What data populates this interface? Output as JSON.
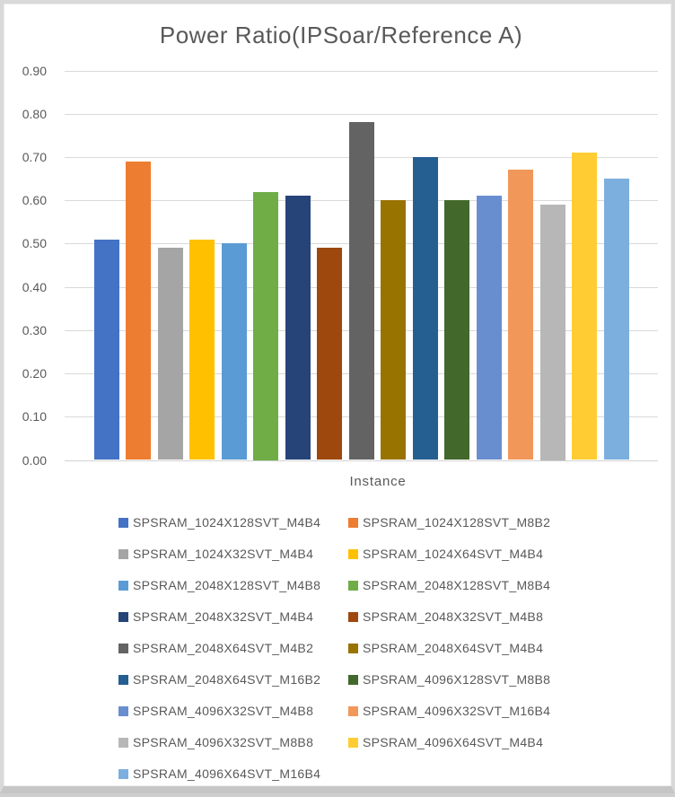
{
  "chart_data": {
    "type": "bar",
    "title": "Power Ratio(IPSoar/Reference A)",
    "xlabel": "Instance",
    "ylabel": "",
    "ylim": [
      0,
      0.9
    ],
    "ytick_step": 0.1,
    "ytick_labels": [
      "0.00",
      "0.10",
      "0.20",
      "0.30",
      "0.40",
      "0.50",
      "0.60",
      "0.70",
      "0.80",
      "0.90"
    ],
    "grid": true,
    "legend_position": "bottom",
    "axis_text_color": "#595959",
    "gridline_color": "#d9d9d9",
    "series": [
      {
        "name": "SPSRAM_1024X128SVT_M4B4",
        "value": 0.51,
        "color": "#4472C4"
      },
      {
        "name": "SPSRAM_1024X128SVT_M8B2",
        "value": 0.69,
        "color": "#ED7D31"
      },
      {
        "name": "SPSRAM_1024X32SVT_M4B4",
        "value": 0.49,
        "color": "#A5A5A5"
      },
      {
        "name": "SPSRAM_1024X64SVT_M4B4",
        "value": 0.51,
        "color": "#FFC000"
      },
      {
        "name": "SPSRAM_2048X128SVT_M4B8",
        "value": 0.5,
        "color": "#5B9BD5"
      },
      {
        "name": "SPSRAM_2048X128SVT_M8B4",
        "value": 0.62,
        "color": "#70AD47"
      },
      {
        "name": "SPSRAM_2048X32SVT_M4B4",
        "value": 0.61,
        "color": "#264478"
      },
      {
        "name": "SPSRAM_2048X32SVT_M4B8",
        "value": 0.49,
        "color": "#9E480E"
      },
      {
        "name": "SPSRAM_2048X64SVT_M4B2",
        "value": 0.78,
        "color": "#636363"
      },
      {
        "name": "SPSRAM_2048X64SVT_M4B4",
        "value": 0.6,
        "color": "#997300"
      },
      {
        "name": "SPSRAM_2048X64SVT_M16B2",
        "value": 0.7,
        "color": "#255E91"
      },
      {
        "name": "SPSRAM_4096X128SVT_M8B8",
        "value": 0.6,
        "color": "#43682B"
      },
      {
        "name": "SPSRAM_4096X32SVT_M4B8",
        "value": 0.61,
        "color": "#698ED0"
      },
      {
        "name": "SPSRAM_4096X32SVT_M16B4",
        "value": 0.67,
        "color": "#F1975A"
      },
      {
        "name": "SPSRAM_4096X32SVT_M8B8",
        "value": 0.59,
        "color": "#B7B7B7"
      },
      {
        "name": "SPSRAM_4096X64SVT_M4B4",
        "value": 0.71,
        "color": "#FFCD33"
      },
      {
        "name": "SPSRAM_4096X64SVT_M16B4",
        "value": 0.65,
        "color": "#7CAFDD"
      }
    ]
  }
}
